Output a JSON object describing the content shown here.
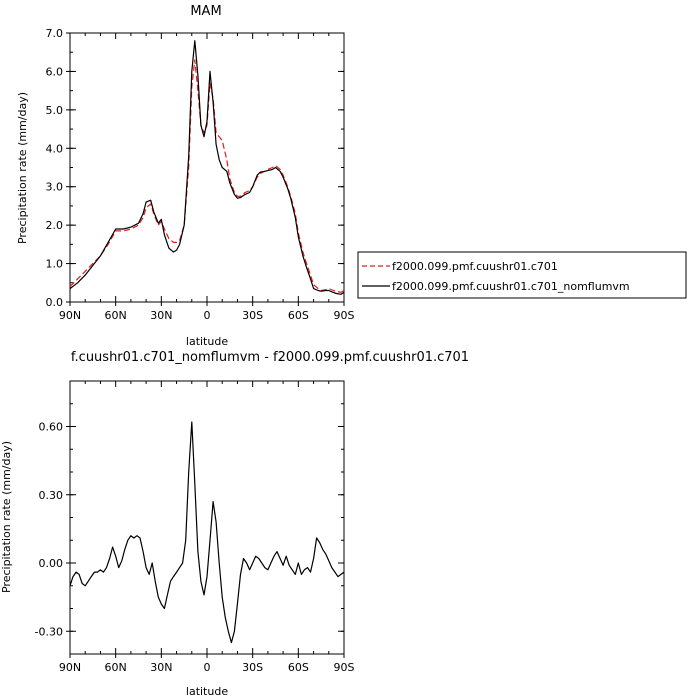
{
  "chart_data": [
    {
      "type": "line",
      "title": "MAM",
      "xlabel": "latitude",
      "ylabel": "Precipitation rate (mm/day)",
      "xlim": [
        90,
        -90
      ],
      "ylim": [
        0,
        7
      ],
      "xticks": [
        90,
        60,
        30,
        0,
        -30,
        -60,
        -90
      ],
      "xtick_labels": [
        "90N",
        "60N",
        "30N",
        "0",
        "30S",
        "60S",
        "90S"
      ],
      "yticks": [
        0,
        1,
        2,
        3,
        4,
        5,
        6,
        7
      ],
      "ytick_labels": [
        "0.0",
        "1.0",
        "2.0",
        "3.0",
        "4.0",
        "5.0",
        "6.0",
        "7.0"
      ],
      "legend": "right",
      "grid": false,
      "series": [
        {
          "name": "f2000.099.pmf.cuushr01.c701",
          "color": "#e8191a",
          "dash": "dashed",
          "x": [
            90,
            85,
            80,
            75,
            70,
            65,
            60,
            55,
            50,
            45,
            42,
            40,
            37,
            35,
            32,
            30,
            28,
            25,
            22,
            20,
            18,
            15,
            12,
            10,
            8,
            6,
            4,
            2,
            0,
            -2,
            -4,
            -6,
            -8,
            -10,
            -13,
            -15,
            -18,
            -20,
            -22,
            -25,
            -28,
            -30,
            -33,
            -35,
            -38,
            -40,
            -43,
            -45,
            -48,
            -50,
            -53,
            -55,
            -58,
            -60,
            -63,
            -65,
            -68,
            -70,
            -73,
            -75,
            -78,
            -80,
            -83,
            -85,
            -88,
            -90
          ],
          "y": [
            0.4,
            0.6,
            0.8,
            1.0,
            1.2,
            1.5,
            1.85,
            1.85,
            1.9,
            2.0,
            2.2,
            2.45,
            2.55,
            2.3,
            2.0,
            2.1,
            1.9,
            1.65,
            1.55,
            1.55,
            1.6,
            2.0,
            3.5,
            5.6,
            6.3,
            5.5,
            4.6,
            4.4,
            4.6,
            5.7,
            5.3,
            4.4,
            4.3,
            4.2,
            3.7,
            3.2,
            2.85,
            2.75,
            2.75,
            2.85,
            2.9,
            3.0,
            3.25,
            3.35,
            3.4,
            3.45,
            3.5,
            3.55,
            3.45,
            3.3,
            3.0,
            2.75,
            2.3,
            1.8,
            1.3,
            1.05,
            0.7,
            0.45,
            0.35,
            0.3,
            0.32,
            0.35,
            0.3,
            0.28,
            0.25,
            0.3
          ]
        },
        {
          "name": "f2000.099.pmf.cuushr01.c701_nomflumvm",
          "color": "#000000",
          "dash": "solid",
          "x": [
            90,
            85,
            80,
            75,
            70,
            65,
            60,
            55,
            50,
            45,
            42,
            40,
            37,
            35,
            32,
            30,
            28,
            25,
            22,
            20,
            18,
            15,
            12,
            10,
            8,
            6,
            4,
            2,
            0,
            -2,
            -4,
            -6,
            -8,
            -10,
            -13,
            -15,
            -18,
            -20,
            -22,
            -25,
            -28,
            -30,
            -33,
            -35,
            -38,
            -40,
            -43,
            -45,
            -48,
            -50,
            -53,
            -55,
            -58,
            -60,
            -63,
            -65,
            -68,
            -70,
            -73,
            -75,
            -78,
            -80,
            -83,
            -85,
            -88,
            -90
          ],
          "y": [
            0.35,
            0.5,
            0.7,
            0.95,
            1.2,
            1.55,
            1.9,
            1.9,
            1.95,
            2.05,
            2.3,
            2.6,
            2.65,
            2.35,
            2.05,
            2.15,
            1.75,
            1.4,
            1.3,
            1.35,
            1.5,
            2.0,
            3.8,
            6.0,
            6.8,
            5.9,
            4.6,
            4.3,
            4.7,
            6.0,
            5.2,
            4.1,
            3.7,
            3.5,
            3.4,
            3.1,
            2.8,
            2.7,
            2.72,
            2.8,
            2.85,
            3.0,
            3.3,
            3.38,
            3.4,
            3.42,
            3.45,
            3.5,
            3.4,
            3.25,
            2.95,
            2.7,
            2.2,
            1.7,
            1.2,
            0.95,
            0.6,
            0.35,
            0.3,
            0.28,
            0.3,
            0.3,
            0.25,
            0.22,
            0.2,
            0.25
          ]
        }
      ]
    },
    {
      "type": "line",
      "title": "f.cuushr01.c701_nomflumvm - f2000.099.pmf.cuushr01.c701",
      "xlabel": "latitude",
      "ylabel": "Precipitation rate (mm/day)",
      "xlim": [
        90,
        -90
      ],
      "ylim": [
        -0.4,
        0.8
      ],
      "xticks": [
        90,
        60,
        30,
        0,
        -30,
        -60,
        -90
      ],
      "xtick_labels": [
        "90N",
        "60N",
        "30N",
        "0",
        "30S",
        "60S",
        "90S"
      ],
      "yticks": [
        -0.3,
        0,
        0.3,
        0.6
      ],
      "ytick_labels": [
        "-0.30",
        "0.00",
        "0.30",
        "0.60"
      ],
      "grid": false,
      "series": [
        {
          "name": "",
          "color": "#000000",
          "dash": "solid",
          "x": [
            90,
            88,
            86,
            84,
            82,
            80,
            78,
            76,
            74,
            72,
            70,
            68,
            66,
            64,
            62,
            60,
            58,
            56,
            54,
            52,
            50,
            48,
            46,
            44,
            42,
            40,
            38,
            36,
            34,
            32,
            30,
            28,
            26,
            24,
            22,
            20,
            18,
            16,
            14,
            12,
            10,
            8,
            6,
            4,
            2,
            0,
            -2,
            -4,
            -6,
            -8,
            -10,
            -12,
            -14,
            -16,
            -18,
            -20,
            -22,
            -24,
            -26,
            -28,
            -30,
            -32,
            -34,
            -36,
            -38,
            -40,
            -42,
            -44,
            -46,
            -48,
            -50,
            -52,
            -54,
            -56,
            -58,
            -60,
            -62,
            -64,
            -66,
            -68,
            -70,
            -72,
            -74,
            -76,
            -78,
            -80,
            -82,
            -84,
            -86,
            -88,
            -90
          ],
          "y": [
            -0.1,
            -0.06,
            -0.04,
            -0.05,
            -0.09,
            -0.1,
            -0.08,
            -0.06,
            -0.04,
            -0.04,
            -0.03,
            -0.04,
            -0.02,
            0.02,
            0.07,
            0.03,
            -0.02,
            0.01,
            0.06,
            0.1,
            0.12,
            0.11,
            0.12,
            0.11,
            0.05,
            -0.02,
            -0.05,
            0.0,
            -0.08,
            -0.15,
            -0.18,
            -0.2,
            -0.14,
            -0.08,
            -0.06,
            -0.04,
            -0.02,
            0.0,
            0.1,
            0.4,
            0.62,
            0.35,
            0.05,
            -0.08,
            -0.14,
            -0.06,
            0.1,
            0.27,
            0.18,
            0.0,
            -0.15,
            -0.24,
            -0.3,
            -0.35,
            -0.3,
            -0.18,
            -0.05,
            0.02,
            0.0,
            -0.03,
            0.0,
            0.03,
            0.02,
            0.0,
            -0.02,
            -0.03,
            0.0,
            0.03,
            0.05,
            0.02,
            -0.01,
            0.03,
            -0.01,
            -0.03,
            -0.05,
            0.0,
            -0.05,
            -0.03,
            -0.02,
            -0.04,
            0.02,
            0.11,
            0.09,
            0.06,
            0.04,
            0.01,
            -0.02,
            -0.04,
            -0.06,
            -0.05,
            -0.04
          ]
        }
      ]
    }
  ]
}
